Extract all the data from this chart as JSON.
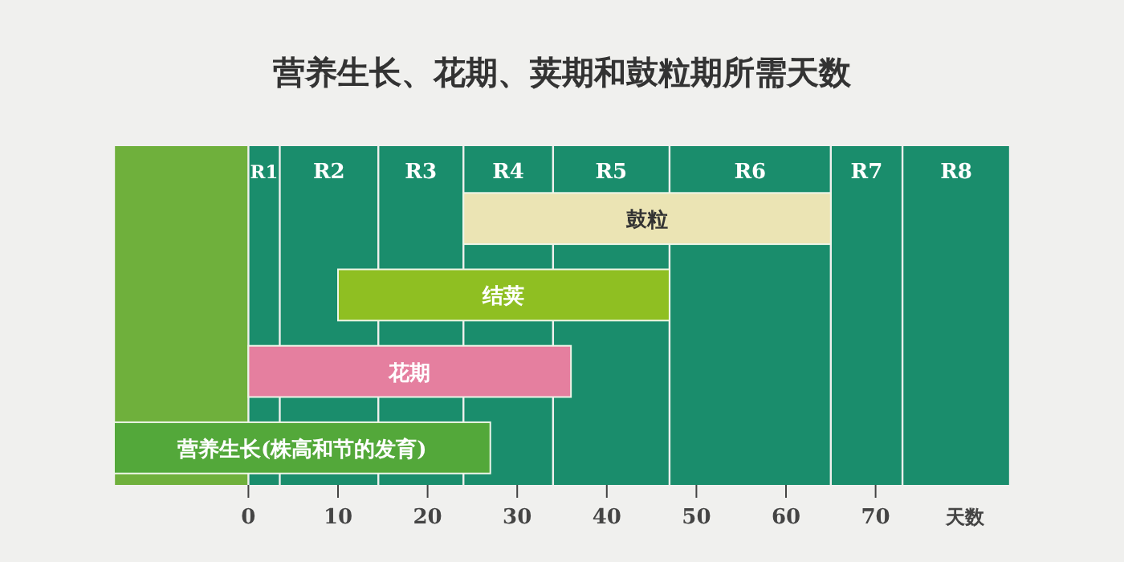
{
  "chart_data": {
    "type": "bar",
    "title": "营养生长、花期、荚期和鼓粒期所需天数",
    "xlabel": "天数",
    "orientation": "horizontal",
    "categories": [
      "鼓粒",
      "结荚",
      "花期",
      "营养生长(株高和节的发育)"
    ],
    "base": [
      24,
      10,
      0,
      -15
    ],
    "values": [
      41,
      37,
      36,
      42
    ],
    "colors": [
      "#ebe4b4",
      "#8fbf22",
      "#e57f9f",
      "#53a83a"
    ],
    "xlim": [
      -15,
      85
    ],
    "xticks": [
      0,
      10,
      20,
      30,
      40,
      50,
      60,
      70
    ],
    "bands": [
      {
        "axis": "x",
        "from": -15,
        "to": 0,
        "label": null,
        "color": "#6fb03c"
      },
      {
        "axis": "x",
        "from": 0,
        "to": 3.5,
        "label": "R1",
        "color": "#1a8d6c"
      },
      {
        "axis": "x",
        "from": 3.5,
        "to": 14.5,
        "label": "R2",
        "color": "#1a8d6c"
      },
      {
        "axis": "x",
        "from": 14.5,
        "to": 24,
        "label": "R3",
        "color": "#1a8d6c"
      },
      {
        "axis": "x",
        "from": 24,
        "to": 34,
        "label": "R4",
        "color": "#1a8d6c"
      },
      {
        "axis": "x",
        "from": 34,
        "to": 47,
        "label": "R5",
        "color": "#1a8d6c"
      },
      {
        "axis": "x",
        "from": 47,
        "to": 65,
        "label": "R6",
        "color": "#1a8d6c"
      },
      {
        "axis": "x",
        "from": 65,
        "to": 73,
        "label": "R7",
        "color": "#1a8d6c"
      },
      {
        "axis": "x",
        "from": 73,
        "to": 85,
        "label": "R8",
        "color": "#1a8d6c"
      }
    ]
  }
}
